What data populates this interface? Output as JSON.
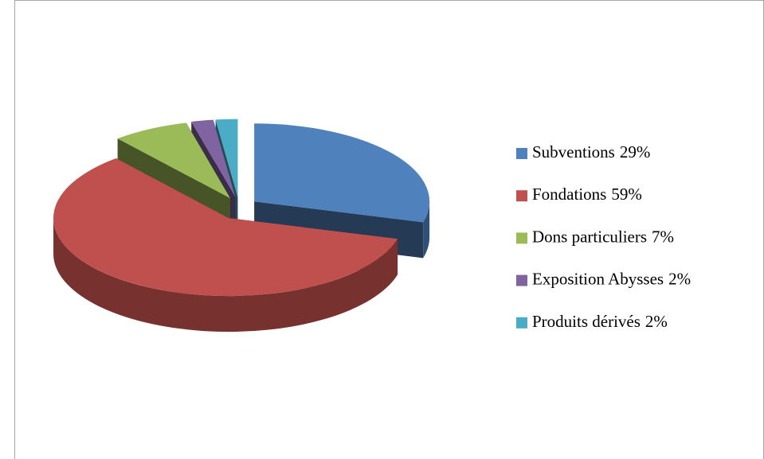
{
  "chart_data": {
    "type": "pie",
    "three_d": true,
    "exploded": true,
    "categories": [
      "Subventions",
      "Fondations",
      "Dons particuliers",
      "Exposition Abysses",
      "Produits dérivés"
    ],
    "values": [
      29,
      59,
      7,
      2,
      2
    ],
    "value_labels": [
      "29%",
      "59%",
      "7%",
      "2%",
      "2%"
    ],
    "colors": [
      "#4f81bd",
      "#c0504d",
      "#9bbb59",
      "#8064a2",
      "#4bacc6"
    ],
    "legend": "right"
  }
}
